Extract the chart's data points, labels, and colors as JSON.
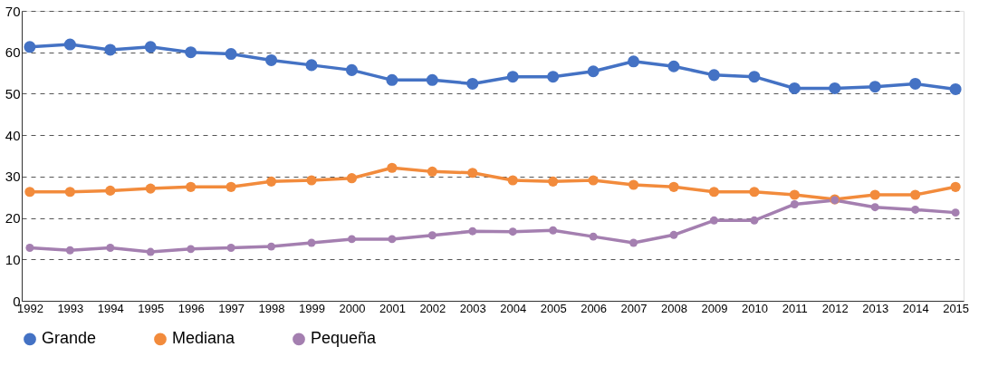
{
  "chart_data": {
    "type": "line",
    "categories": [
      "1992",
      "1993",
      "1994",
      "1995",
      "1996",
      "1997",
      "1998",
      "1999",
      "2000",
      "2001",
      "2002",
      "2003",
      "2004",
      "2005",
      "2006",
      "2007",
      "2008",
      "2009",
      "2010",
      "2011",
      "2012",
      "2013",
      "2014",
      "2015"
    ],
    "series": [
      {
        "name": "Grande",
        "color": "#4472c4",
        "values": [
          61.3,
          61.9,
          60.6,
          61.3,
          60.0,
          59.6,
          58.1,
          56.9,
          55.7,
          53.3,
          53.3,
          52.4,
          54.1,
          54.1,
          55.4,
          57.8,
          56.6,
          54.5,
          54.1,
          51.3,
          51.3,
          51.7,
          52.4,
          51.1
        ]
      },
      {
        "name": "Mediana",
        "color": "#f28b3c",
        "values": [
          26.3,
          26.3,
          26.6,
          27.1,
          27.5,
          27.5,
          28.8,
          29.1,
          29.6,
          32.1,
          31.2,
          30.9,
          29.1,
          28.8,
          29.1,
          28.0,
          27.5,
          26.3,
          26.3,
          25.6,
          24.5,
          25.6,
          25.6,
          27.5
        ]
      },
      {
        "name": "Pequeña",
        "color": "#a47fb0",
        "values": [
          12.8,
          12.2,
          12.8,
          11.8,
          12.5,
          12.8,
          13.1,
          14.0,
          14.9,
          14.9,
          15.8,
          16.8,
          16.7,
          17.0,
          15.5,
          14.0,
          15.9,
          19.4,
          19.4,
          23.3,
          24.3,
          22.6,
          22.0,
          21.3
        ]
      }
    ],
    "ylim": [
      0,
      70
    ],
    "yticks": [
      0,
      10,
      20,
      30,
      40,
      50,
      60,
      70
    ],
    "grid": "y",
    "legend": "bottom",
    "marker": "circle",
    "line_style": "solid"
  }
}
